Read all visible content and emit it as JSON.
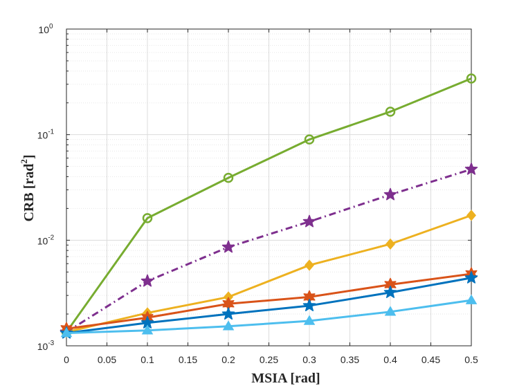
{
  "chart_data": {
    "type": "line",
    "title": "",
    "xlabel": "MSIA [rad]",
    "ylabel": {
      "prefix": "CRB [rad",
      "superscript": "2",
      "suffix": "]"
    },
    "xlim": [
      0,
      0.5
    ],
    "ylim": [
      0.001,
      1
    ],
    "yscale": "log",
    "grid": true,
    "x": [
      0,
      0.1,
      0.2,
      0.3,
      0.4,
      0.5
    ],
    "x_ticks": [
      "0",
      "0.05",
      "0.1",
      "0.15",
      "0.2",
      "0.25",
      "0.3",
      "0.35",
      "0.4",
      "0.45",
      "0.5"
    ],
    "x_tick_values": [
      0,
      0.05,
      0.1,
      0.15,
      0.2,
      0.25,
      0.3,
      0.35,
      0.4,
      0.45,
      0.5
    ],
    "y_ticks": [
      {
        "value": 0.001,
        "base": "10",
        "exp": "-3"
      },
      {
        "value": 0.01,
        "base": "10",
        "exp": "-2"
      },
      {
        "value": 0.1,
        "base": "10",
        "exp": "-1"
      },
      {
        "value": 1,
        "base": "10",
        "exp": "0"
      }
    ],
    "series": [
      {
        "name": "series-green-circle",
        "color": "#77AC30",
        "marker": "circle",
        "dash": "solid",
        "values": [
          0.00135,
          0.0162,
          0.039,
          0.09,
          0.165,
          0.34
        ]
      },
      {
        "name": "series-purple-star",
        "color": "#7E2F8E",
        "marker": "star",
        "dash": "dashdot",
        "values": [
          0.00135,
          0.0041,
          0.0086,
          0.015,
          0.027,
          0.047
        ]
      },
      {
        "name": "series-yellow-diamond",
        "color": "#EDB120",
        "marker": "diamond",
        "dash": "solid",
        "values": [
          0.00135,
          0.00205,
          0.0029,
          0.0058,
          0.0092,
          0.0172
        ]
      },
      {
        "name": "series-orange-hexagram",
        "color": "#D95319",
        "marker": "hexagram",
        "dash": "solid",
        "values": [
          0.00145,
          0.00185,
          0.0025,
          0.0029,
          0.0038,
          0.0048
        ]
      },
      {
        "name": "series-blue-star",
        "color": "#0072BD",
        "marker": "star",
        "dash": "solid",
        "values": [
          0.00132,
          0.00165,
          0.002,
          0.0024,
          0.0032,
          0.0044
        ]
      },
      {
        "name": "series-lightblue-triangle",
        "color": "#4DBEEE",
        "marker": "triangle",
        "dash": "solid",
        "values": [
          0.00132,
          0.0014,
          0.00153,
          0.00172,
          0.0021,
          0.0027
        ]
      }
    ]
  }
}
